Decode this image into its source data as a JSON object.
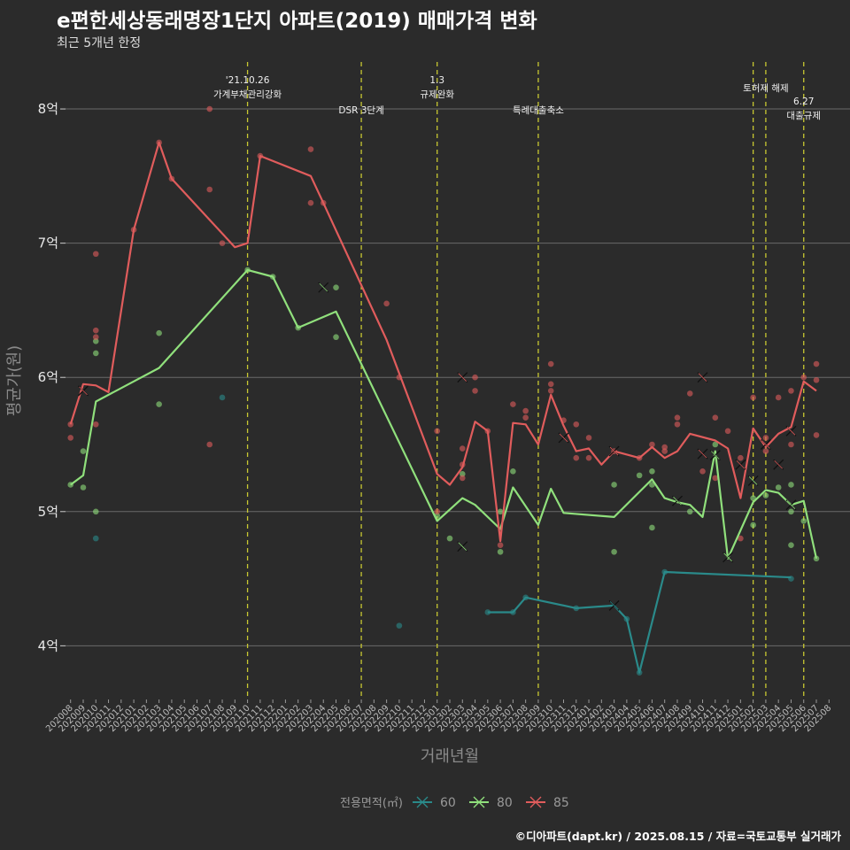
{
  "header": {
    "title": "e편한세상동래명장1단지 아파트(2019) 매매가격 변화",
    "subtitle": "최근 5개년 한정"
  },
  "caption": "©디아파트(dapt.kr) / 2025.08.15 / 자료=국토교통부 실거래가",
  "colors": {
    "background": "#2b2b2b",
    "s60": "#2a8a8a",
    "s80": "#90e07c",
    "s85": "#e05c5c",
    "vline": "#c8c832"
  },
  "chart_data": {
    "type": "line",
    "xlabel": "거래년월",
    "ylabel": "평균가(원)",
    "y_ticks": [
      "4억",
      "5억",
      "6억",
      "7억",
      "8억"
    ],
    "y_tick_values": [
      4,
      5,
      6,
      7,
      8
    ],
    "ylim": [
      3.6,
      8.35
    ],
    "x_tick_labels": [
      "202008",
      "202009",
      "202010",
      "202011",
      "202012",
      "202101",
      "202102",
      "202103",
      "202104",
      "202105",
      "202106",
      "202107",
      "202108",
      "202109",
      "202110",
      "202111",
      "202112",
      "202201",
      "202202",
      "202203",
      "202204",
      "202205",
      "202206",
      "202207",
      "202208",
      "202209",
      "202210",
      "202211",
      "202212",
      "202301",
      "202302",
      "202303",
      "202304",
      "202305",
      "202306",
      "202307",
      "202308",
      "202309",
      "202310",
      "202311",
      "202312",
      "202401",
      "202402",
      "202403",
      "202404",
      "202405",
      "202406",
      "202407",
      "202408",
      "202409",
      "202410",
      "202411",
      "202412",
      "202501",
      "202502",
      "202503",
      "202504",
      "202505",
      "202506",
      "202507",
      "202508"
    ],
    "x_tick_indices": [
      0,
      1,
      2,
      3,
      4,
      5,
      6,
      7,
      8,
      9,
      10,
      11,
      12,
      13,
      14,
      15,
      16,
      17,
      18,
      19,
      20,
      21,
      22,
      23,
      24,
      25,
      26,
      27,
      28,
      29,
      30,
      31,
      32,
      33,
      34,
      35,
      36,
      37,
      38,
      39,
      40,
      41,
      42,
      43,
      44,
      45,
      46,
      47,
      48,
      49,
      50,
      51,
      52,
      53,
      54,
      55,
      56,
      57,
      58,
      59,
      60
    ],
    "legend": {
      "title": "전용면적(㎡)",
      "position": "bottom"
    },
    "vlines": [
      {
        "x": 14,
        "lines": [
          "'21.10.26",
          "가계부채관리강화"
        ],
        "row": 1
      },
      {
        "x": 23,
        "lines": [
          "DSR 3단계"
        ],
        "row": 2
      },
      {
        "x": 29,
        "lines": [
          "1.3",
          "규제완화"
        ],
        "row": 1
      },
      {
        "x": 37,
        "lines": [
          "특례대출축소"
        ],
        "row": 2
      },
      {
        "x": 54,
        "lines": [],
        "row": 0
      },
      {
        "x": 55,
        "lines": [
          "토허제 해제"
        ],
        "row": 1.4
      },
      {
        "x": 58,
        "lines": [
          "6.27",
          "대출규제"
        ],
        "row": 2
      }
    ],
    "series": [
      {
        "name": "60",
        "line": [
          [
            33,
            4.25
          ],
          [
            35,
            4.25
          ],
          [
            36,
            4.36
          ],
          [
            40,
            4.28
          ],
          [
            43,
            4.3
          ],
          [
            44,
            4.2
          ],
          [
            45,
            3.8
          ],
          [
            47,
            4.55
          ],
          [
            57,
            4.51
          ]
        ],
        "points": [
          [
            33,
            4.25
          ],
          [
            35,
            4.25
          ],
          [
            36,
            4.36
          ],
          [
            40,
            4.28
          ],
          [
            44,
            4.2
          ],
          [
            45,
            3.8
          ],
          [
            47,
            4.55
          ],
          [
            57,
            4.5
          ],
          [
            2,
            4.8
          ],
          [
            12,
            5.85
          ],
          [
            26,
            4.15
          ]
        ],
        "crosses": [
          [
            43,
            4.3
          ]
        ]
      },
      {
        "name": "80",
        "line": [
          [
            0,
            5.2
          ],
          [
            1,
            5.27
          ],
          [
            2,
            5.82
          ],
          [
            7,
            6.07
          ],
          [
            14,
            6.8
          ],
          [
            16,
            6.75
          ],
          [
            18,
            6.37
          ],
          [
            21,
            6.49
          ],
          [
            29,
            4.93
          ],
          [
            31,
            5.1
          ],
          [
            32,
            5.05
          ],
          [
            34,
            4.87
          ],
          [
            35,
            5.18
          ],
          [
            37,
            4.9
          ],
          [
            38,
            5.17
          ],
          [
            39,
            4.99
          ],
          [
            43,
            4.96
          ],
          [
            46,
            5.24
          ],
          [
            47,
            5.1
          ],
          [
            48,
            5.07
          ],
          [
            49,
            5.05
          ],
          [
            50,
            4.96
          ],
          [
            51,
            5.45
          ],
          [
            52,
            4.65
          ],
          [
            54,
            5.07
          ],
          [
            55,
            5.16
          ],
          [
            56,
            5.14
          ],
          [
            57,
            5.05
          ],
          [
            58,
            5.08
          ],
          [
            59,
            4.65
          ]
        ],
        "points": [
          [
            0,
            5.2
          ],
          [
            1,
            5.18
          ],
          [
            1,
            5.45
          ],
          [
            2,
            6.27
          ],
          [
            2,
            6.18
          ],
          [
            2,
            5.0
          ],
          [
            7,
            6.33
          ],
          [
            7,
            5.8
          ],
          [
            14,
            6.8
          ],
          [
            16,
            6.75
          ],
          [
            18,
            6.37
          ],
          [
            21,
            6.67
          ],
          [
            21,
            6.3
          ],
          [
            29,
            4.97
          ],
          [
            30,
            4.8
          ],
          [
            31,
            5.28
          ],
          [
            34,
            4.7
          ],
          [
            34,
            5.0
          ],
          [
            35,
            5.3
          ],
          [
            43,
            4.7
          ],
          [
            43,
            5.2
          ],
          [
            45,
            5.27
          ],
          [
            46,
            5.3
          ],
          [
            46,
            5.2
          ],
          [
            46,
            4.88
          ],
          [
            49,
            5.0
          ],
          [
            51,
            5.5
          ],
          [
            54,
            5.1
          ],
          [
            54,
            4.9
          ],
          [
            55,
            5.12
          ],
          [
            56,
            5.18
          ],
          [
            57,
            5.2
          ],
          [
            57,
            5.0
          ],
          [
            57,
            4.75
          ],
          [
            59,
            4.65
          ],
          [
            58,
            4.93
          ]
        ],
        "crosses": [
          [
            20,
            6.67
          ],
          [
            31,
            4.74
          ],
          [
            48,
            5.08
          ],
          [
            51,
            5.42
          ],
          [
            52,
            4.66
          ],
          [
            54,
            5.23
          ],
          [
            57,
            5.05
          ]
        ]
      },
      {
        "name": "85",
        "line": [
          [
            0,
            5.65
          ],
          [
            1,
            5.95
          ],
          [
            2,
            5.94
          ],
          [
            3,
            5.89
          ],
          [
            5,
            7.1
          ],
          [
            7,
            7.75
          ],
          [
            8,
            7.48
          ],
          [
            13,
            6.97
          ],
          [
            14,
            7.0
          ],
          [
            15,
            7.65
          ],
          [
            19,
            7.5
          ],
          [
            20,
            7.3
          ],
          [
            25,
            6.28
          ],
          [
            29,
            5.28
          ],
          [
            30,
            5.2
          ],
          [
            31,
            5.33
          ],
          [
            32,
            5.67
          ],
          [
            33,
            5.6
          ],
          [
            34,
            4.78
          ],
          [
            35,
            5.66
          ],
          [
            36,
            5.65
          ],
          [
            37,
            5.5
          ],
          [
            38,
            5.87
          ],
          [
            39,
            5.64
          ],
          [
            40,
            5.45
          ],
          [
            41,
            5.47
          ],
          [
            42,
            5.35
          ],
          [
            43,
            5.45
          ],
          [
            45,
            5.4
          ],
          [
            46,
            5.48
          ],
          [
            47,
            5.4
          ],
          [
            48,
            5.45
          ],
          [
            49,
            5.58
          ],
          [
            51,
            5.53
          ],
          [
            52,
            5.47
          ],
          [
            53,
            5.1
          ],
          [
            54,
            5.62
          ],
          [
            55,
            5.48
          ],
          [
            56,
            5.58
          ],
          [
            57,
            5.63
          ],
          [
            58,
            5.97
          ],
          [
            59,
            5.9
          ]
        ],
        "points": [
          [
            0,
            5.65
          ],
          [
            0,
            5.55
          ],
          [
            2,
            6.92
          ],
          [
            2,
            6.35
          ],
          [
            2,
            6.3
          ],
          [
            2,
            5.65
          ],
          [
            5,
            7.1
          ],
          [
            7,
            7.75
          ],
          [
            8,
            7.48
          ],
          [
            11,
            8.0
          ],
          [
            11,
            7.4
          ],
          [
            11,
            5.5
          ],
          [
            12,
            7.0
          ],
          [
            15,
            7.65
          ],
          [
            19,
            7.7
          ],
          [
            19,
            7.3
          ],
          [
            20,
            7.3
          ],
          [
            25,
            6.55
          ],
          [
            26,
            6.0
          ],
          [
            29,
            5.6
          ],
          [
            29,
            5.0
          ],
          [
            31,
            5.47
          ],
          [
            31,
            5.35
          ],
          [
            31,
            5.25
          ],
          [
            32,
            6.0
          ],
          [
            32,
            5.9
          ],
          [
            33,
            5.6
          ],
          [
            34,
            4.75
          ],
          [
            35,
            5.8
          ],
          [
            36,
            5.75
          ],
          [
            36,
            5.7
          ],
          [
            38,
            6.1
          ],
          [
            38,
            5.95
          ],
          [
            38,
            5.9
          ],
          [
            39,
            5.68
          ],
          [
            40,
            5.65
          ],
          [
            40,
            5.4
          ],
          [
            41,
            5.55
          ],
          [
            41,
            5.4
          ],
          [
            43,
            5.45
          ],
          [
            45,
            5.4
          ],
          [
            46,
            5.5
          ],
          [
            47,
            5.48
          ],
          [
            47,
            5.45
          ],
          [
            48,
            5.7
          ],
          [
            48,
            5.65
          ],
          [
            49,
            5.88
          ],
          [
            50,
            5.3
          ],
          [
            51,
            5.7
          ],
          [
            51,
            5.25
          ],
          [
            52,
            5.6
          ],
          [
            53,
            4.8
          ],
          [
            53,
            5.4
          ],
          [
            54,
            5.85
          ],
          [
            55,
            5.55
          ],
          [
            55,
            5.45
          ],
          [
            56,
            5.85
          ],
          [
            57,
            5.9
          ],
          [
            57,
            5.5
          ],
          [
            58,
            6.0
          ],
          [
            59,
            6.1
          ],
          [
            59,
            5.98
          ],
          [
            59,
            5.57
          ]
        ],
        "crosses": [
          [
            1,
            5.9
          ],
          [
            31,
            6.0
          ],
          [
            39,
            5.55
          ],
          [
            43,
            5.45
          ],
          [
            50,
            5.43
          ],
          [
            50,
            6.0
          ],
          [
            53,
            5.35
          ],
          [
            55,
            5.5
          ],
          [
            56,
            5.35
          ],
          [
            57,
            5.6
          ]
        ]
      }
    ]
  }
}
